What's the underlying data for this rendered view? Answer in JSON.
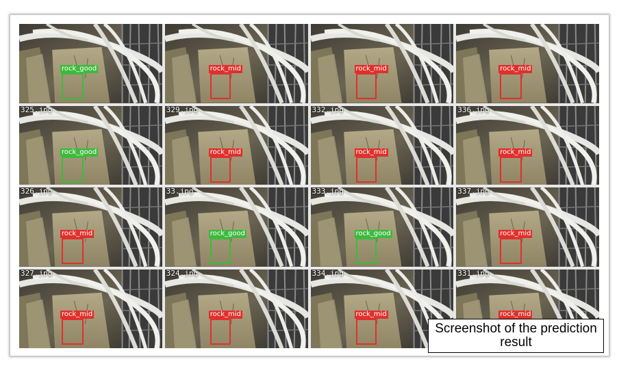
{
  "tiles": [
    {
      "file": "",
      "label": "rock_good",
      "status": "good"
    },
    {
      "file": "",
      "label": "rock_mid",
      "status": "mid"
    },
    {
      "file": "",
      "label": "rock_mid",
      "status": "mid"
    },
    {
      "file": "",
      "label": "rock_mid",
      "status": "mid"
    },
    {
      "file": "325.jpg",
      "label": "rock_good",
      "status": "good"
    },
    {
      "file": "329.jpg",
      "label": "rock_mid",
      "status": "mid"
    },
    {
      "file": "332.jpg",
      "label": "rock_mid",
      "status": "mid"
    },
    {
      "file": "336.jpg",
      "label": "rock_mid",
      "status": "mid"
    },
    {
      "file": "326.jpg",
      "label": "rock_mid",
      "status": "mid"
    },
    {
      "file": "33.jpg",
      "label": "rock_good",
      "status": "good"
    },
    {
      "file": "333.jpg",
      "label": "rock_good",
      "status": "good"
    },
    {
      "file": "337.jpg",
      "label": "rock_mid",
      "status": "mid"
    },
    {
      "file": "327.jpg",
      "label": "rock_mid",
      "status": "mid"
    },
    {
      "file": "324.jpg",
      "label": "rock_mid",
      "status": "mid"
    },
    {
      "file": "334.jpg",
      "label": "rock_mid",
      "status": "mid"
    },
    {
      "file": "331.jpg",
      "label": "rock_mid",
      "status": "mid"
    }
  ],
  "colors": {
    "good": "#3dba3d",
    "mid": "#e0302c"
  },
  "caption": "Screenshot of the prediction result"
}
